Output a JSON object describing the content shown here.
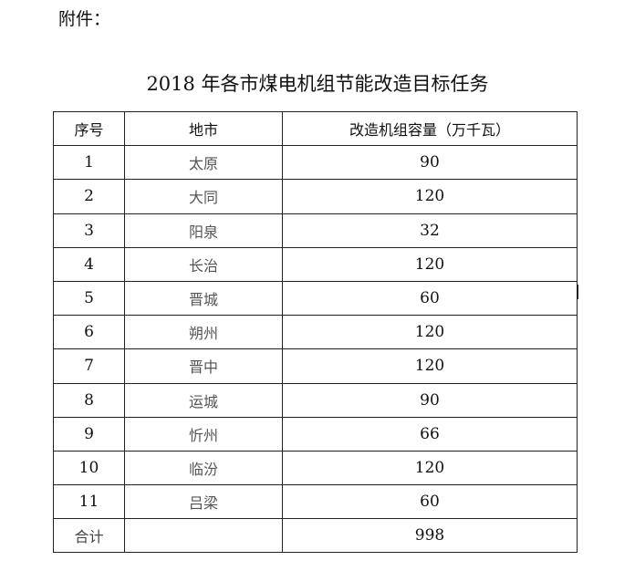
{
  "attachment_label": "附件：",
  "title": "2018 年各市煤电机组节能改造目标任务",
  "table": {
    "headers": [
      "序号",
      "地市",
      "改造机组容量（万千瓦）"
    ],
    "rows": [
      [
        "1",
        "太原",
        "90"
      ],
      [
        "2",
        "大同",
        "120"
      ],
      [
        "3",
        "阳泉",
        "32"
      ],
      [
        "4",
        "长治",
        "120"
      ],
      [
        "5",
        "晋城",
        "60"
      ],
      [
        "6",
        "朔州",
        "120"
      ],
      [
        "7",
        "晋中",
        "120"
      ],
      [
        "8",
        "运城",
        "90"
      ],
      [
        "9",
        "忻州",
        "66"
      ],
      [
        "10",
        "临汾",
        "120"
      ],
      [
        "11",
        "吕梁",
        "60"
      ]
    ],
    "total": [
      "合计",
      "",
      "998"
    ]
  }
}
